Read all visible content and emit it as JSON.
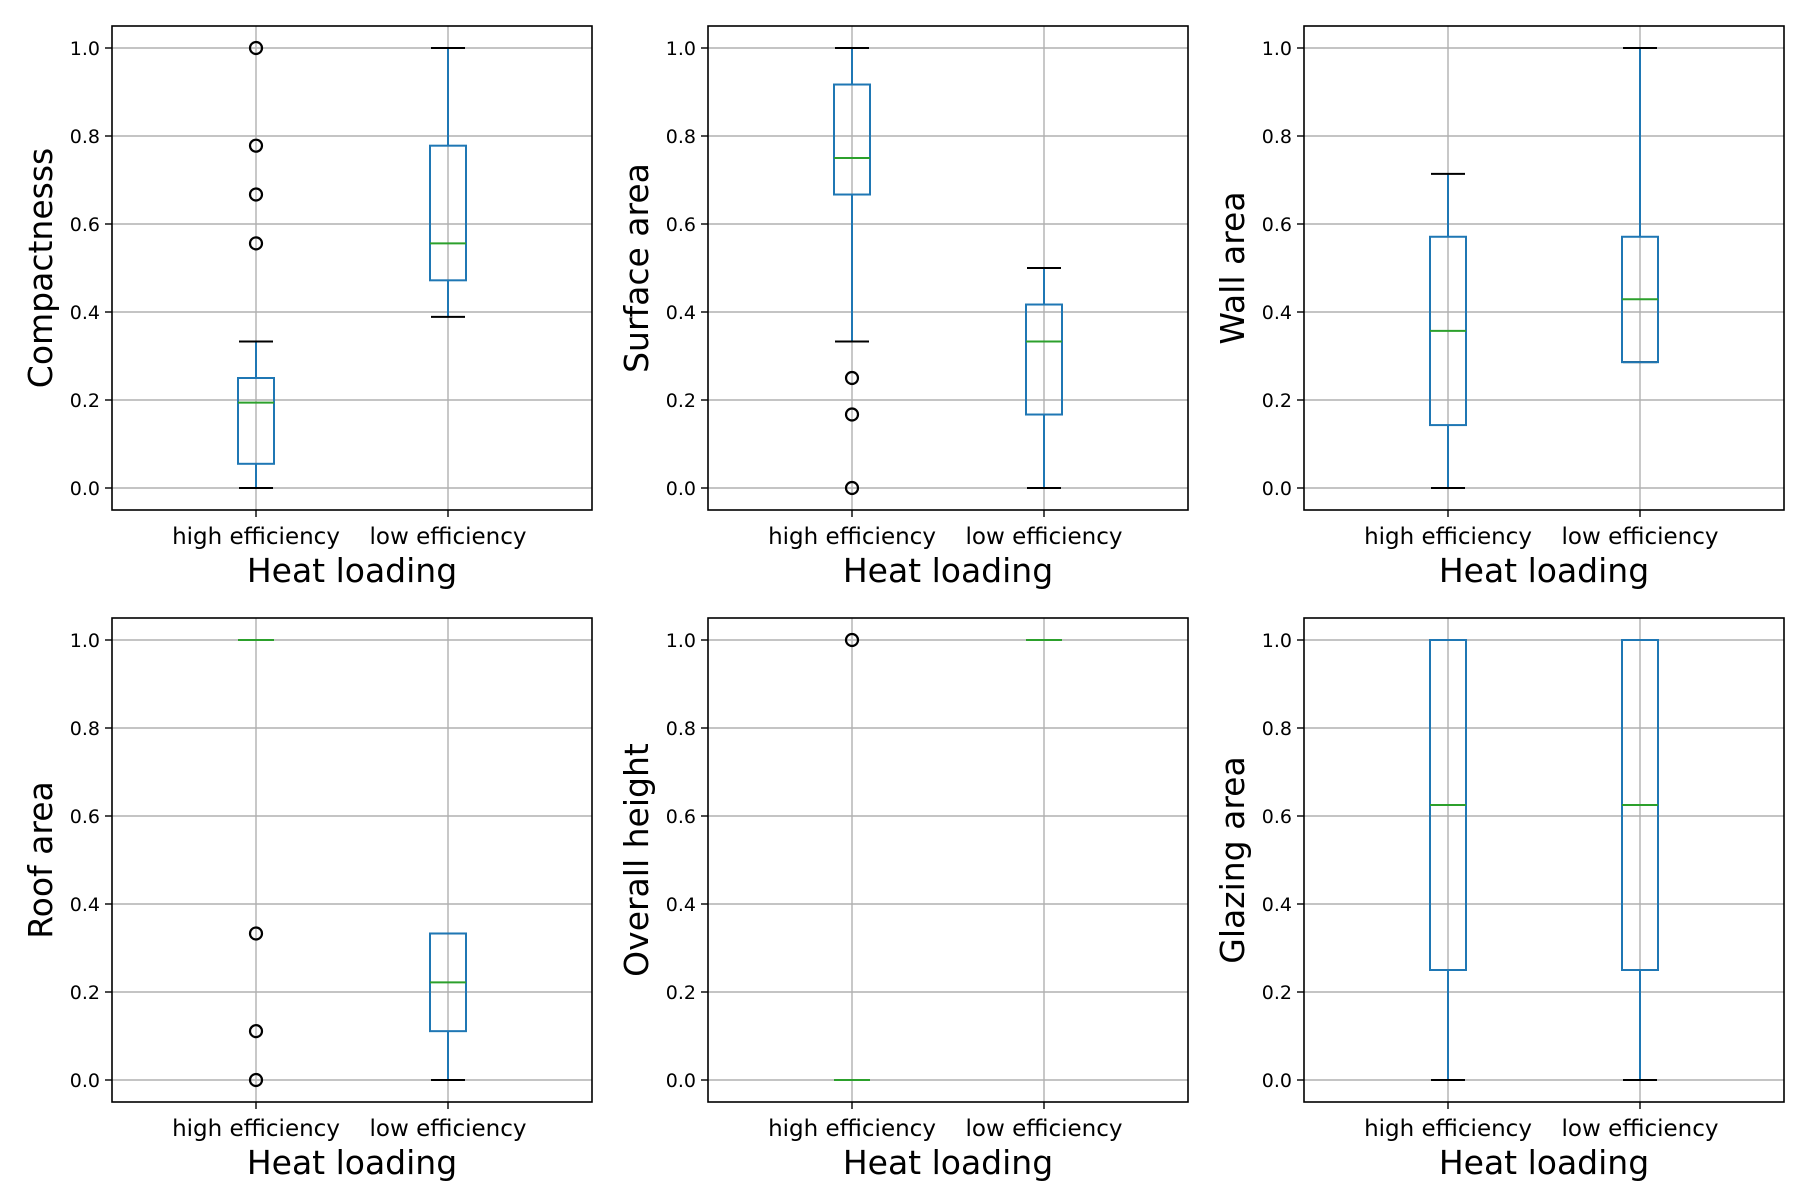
{
  "chart_data": [
    {
      "type": "box",
      "xlabel": "Heat loading",
      "ylabel": "Compactnesss",
      "categories": [
        "high efficiency",
        "low efficiency"
      ],
      "ylim": [
        -0.05,
        1.05
      ],
      "yticks": [
        0.0,
        0.2,
        0.4,
        0.6,
        0.8,
        1.0
      ],
      "grid": true,
      "boxes": [
        {
          "whislo": 0.0,
          "q1": 0.055,
          "med": 0.194,
          "q3": 0.25,
          "whishi": 0.333,
          "fliers": [
            0.556,
            0.667,
            0.778,
            1.0
          ]
        },
        {
          "whislo": 0.389,
          "q1": 0.472,
          "med": 0.556,
          "q3": 0.778,
          "whishi": 1.0,
          "fliers": []
        }
      ]
    },
    {
      "type": "box",
      "xlabel": "Heat loading",
      "ylabel": "Surface area",
      "categories": [
        "high efficiency",
        "low efficiency"
      ],
      "ylim": [
        -0.05,
        1.05
      ],
      "yticks": [
        0.0,
        0.2,
        0.4,
        0.6,
        0.8,
        1.0
      ],
      "grid": true,
      "boxes": [
        {
          "whislo": 0.333,
          "q1": 0.667,
          "med": 0.75,
          "q3": 0.917,
          "whishi": 1.0,
          "fliers": [
            0.0,
            0.167,
            0.25
          ]
        },
        {
          "whislo": 0.0,
          "q1": 0.167,
          "med": 0.333,
          "q3": 0.417,
          "whishi": 0.5,
          "fliers": []
        }
      ]
    },
    {
      "type": "box",
      "xlabel": "Heat loading",
      "ylabel": "Wall area",
      "categories": [
        "high efficiency",
        "low efficiency"
      ],
      "ylim": [
        -0.05,
        1.05
      ],
      "yticks": [
        0.0,
        0.2,
        0.4,
        0.6,
        0.8,
        1.0
      ],
      "grid": true,
      "boxes": [
        {
          "whislo": 0.0,
          "q1": 0.143,
          "med": 0.357,
          "q3": 0.571,
          "whishi": 0.714,
          "fliers": []
        },
        {
          "whislo": 0.286,
          "q1": 0.286,
          "med": 0.429,
          "q3": 0.571,
          "whishi": 1.0,
          "fliers": []
        }
      ]
    },
    {
      "type": "box",
      "xlabel": "Heat loading",
      "ylabel": "Roof area",
      "categories": [
        "high efficiency",
        "low efficiency"
      ],
      "ylim": [
        -0.05,
        1.05
      ],
      "yticks": [
        0.0,
        0.2,
        0.4,
        0.6,
        0.8,
        1.0
      ],
      "grid": true,
      "boxes": [
        {
          "whislo": 1.0,
          "q1": 1.0,
          "med": 1.0,
          "q3": 1.0,
          "whishi": 1.0,
          "fliers": [
            0.0,
            0.111,
            0.333
          ]
        },
        {
          "whislo": 0.0,
          "q1": 0.111,
          "med": 0.222,
          "q3": 0.333,
          "whishi": 0.333,
          "fliers": []
        }
      ]
    },
    {
      "type": "box",
      "xlabel": "Heat loading",
      "ylabel": "Overall height",
      "categories": [
        "high efficiency",
        "low efficiency"
      ],
      "ylim": [
        -0.05,
        1.05
      ],
      "yticks": [
        0.0,
        0.2,
        0.4,
        0.6,
        0.8,
        1.0
      ],
      "grid": true,
      "boxes": [
        {
          "whislo": 0.0,
          "q1": 0.0,
          "med": 0.0,
          "q3": 0.0,
          "whishi": 0.0,
          "fliers": [
            1.0
          ]
        },
        {
          "whislo": 1.0,
          "q1": 1.0,
          "med": 1.0,
          "q3": 1.0,
          "whishi": 1.0,
          "fliers": []
        }
      ]
    },
    {
      "type": "box",
      "xlabel": "Heat loading",
      "ylabel": "Glazing area",
      "categories": [
        "high efficiency",
        "low efficiency"
      ],
      "ylim": [
        -0.05,
        1.05
      ],
      "yticks": [
        0.0,
        0.2,
        0.4,
        0.6,
        0.8,
        1.0
      ],
      "grid": true,
      "boxes": [
        {
          "whislo": 0.0,
          "q1": 0.25,
          "med": 0.625,
          "q3": 1.0,
          "whishi": 1.0,
          "fliers": []
        },
        {
          "whislo": 0.0,
          "q1": 0.25,
          "med": 0.625,
          "q3": 1.0,
          "whishi": 1.0,
          "fliers": []
        }
      ]
    }
  ],
  "colors": {
    "box": "#1f77b4",
    "median": "#2ca02c",
    "cap": "#000000",
    "grid": "#b0b0b0"
  }
}
